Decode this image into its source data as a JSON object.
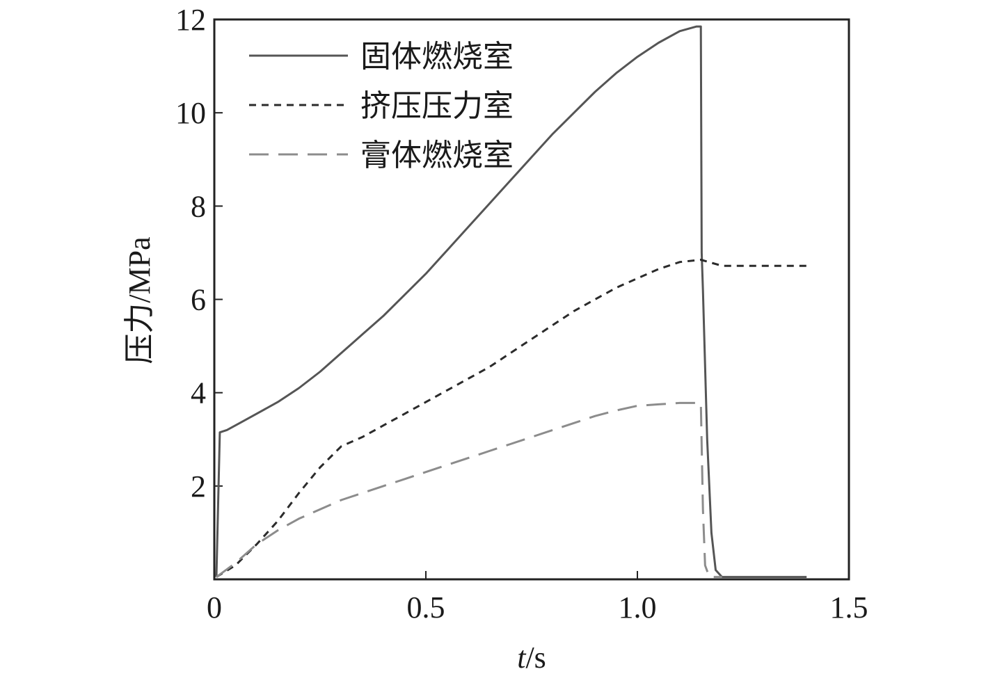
{
  "chart_data": {
    "type": "line",
    "title": "",
    "xlabel": "t/s",
    "xlabel_italic_part": "t",
    "xlabel_rest": "/s",
    "ylabel": "压力/MPa",
    "xlim": [
      0,
      1.5
    ],
    "ylim": [
      0,
      12
    ],
    "xticks": [
      0,
      0.5,
      1.0,
      1.5
    ],
    "xtick_labels": [
      "0",
      "0.5",
      "1.0",
      "1.5"
    ],
    "yticks": [
      2,
      4,
      6,
      8,
      10,
      12
    ],
    "ytick_labels": [
      "2",
      "4",
      "6",
      "8",
      "10",
      "12"
    ],
    "grid": false,
    "legend_position": "top-left",
    "series": [
      {
        "name": "固体燃烧室",
        "style": "solid",
        "color": "#555555",
        "points": [
          [
            0.005,
            0.05
          ],
          [
            0.013,
            3.15
          ],
          [
            0.03,
            3.2
          ],
          [
            0.06,
            3.35
          ],
          [
            0.1,
            3.55
          ],
          [
            0.15,
            3.8
          ],
          [
            0.2,
            4.1
          ],
          [
            0.25,
            4.45
          ],
          [
            0.3,
            4.85
          ],
          [
            0.35,
            5.25
          ],
          [
            0.4,
            5.65
          ],
          [
            0.45,
            6.1
          ],
          [
            0.5,
            6.55
          ],
          [
            0.55,
            7.05
          ],
          [
            0.6,
            7.55
          ],
          [
            0.65,
            8.05
          ],
          [
            0.7,
            8.55
          ],
          [
            0.75,
            9.05
          ],
          [
            0.8,
            9.55
          ],
          [
            0.85,
            10.0
          ],
          [
            0.9,
            10.45
          ],
          [
            0.95,
            10.85
          ],
          [
            1.0,
            11.2
          ],
          [
            1.05,
            11.5
          ],
          [
            1.1,
            11.75
          ],
          [
            1.14,
            11.85
          ],
          [
            1.15,
            11.85
          ],
          [
            1.152,
            7.0
          ],
          [
            1.155,
            6.2
          ],
          [
            1.165,
            3.0
          ],
          [
            1.175,
            1.0
          ],
          [
            1.185,
            0.2
          ],
          [
            1.2,
            0.05
          ],
          [
            1.3,
            0.05
          ],
          [
            1.4,
            0.05
          ]
        ]
      },
      {
        "name": "挤压压力室",
        "style": "dashed",
        "color": "#2b2b2b",
        "points": [
          [
            0.005,
            0.05
          ],
          [
            0.05,
            0.3
          ],
          [
            0.1,
            0.75
          ],
          [
            0.15,
            1.25
          ],
          [
            0.2,
            1.85
          ],
          [
            0.25,
            2.4
          ],
          [
            0.3,
            2.85
          ],
          [
            0.35,
            3.05
          ],
          [
            0.4,
            3.3
          ],
          [
            0.45,
            3.55
          ],
          [
            0.5,
            3.8
          ],
          [
            0.55,
            4.05
          ],
          [
            0.6,
            4.3
          ],
          [
            0.65,
            4.55
          ],
          [
            0.7,
            4.85
          ],
          [
            0.75,
            5.15
          ],
          [
            0.8,
            5.45
          ],
          [
            0.85,
            5.75
          ],
          [
            0.9,
            6.0
          ],
          [
            0.95,
            6.25
          ],
          [
            1.0,
            6.45
          ],
          [
            1.05,
            6.65
          ],
          [
            1.1,
            6.8
          ],
          [
            1.15,
            6.85
          ],
          [
            1.2,
            6.72
          ],
          [
            1.3,
            6.72
          ],
          [
            1.4,
            6.72
          ]
        ]
      },
      {
        "name": "膏体燃烧室",
        "style": "long-dash",
        "color": "#8c8c8c",
        "points": [
          [
            0.005,
            0.05
          ],
          [
            0.02,
            0.15
          ],
          [
            0.05,
            0.35
          ],
          [
            0.1,
            0.75
          ],
          [
            0.15,
            1.05
          ],
          [
            0.2,
            1.3
          ],
          [
            0.25,
            1.5
          ],
          [
            0.3,
            1.7
          ],
          [
            0.35,
            1.85
          ],
          [
            0.4,
            2.0
          ],
          [
            0.45,
            2.15
          ],
          [
            0.5,
            2.3
          ],
          [
            0.55,
            2.45
          ],
          [
            0.6,
            2.6
          ],
          [
            0.65,
            2.75
          ],
          [
            0.7,
            2.9
          ],
          [
            0.75,
            3.05
          ],
          [
            0.8,
            3.2
          ],
          [
            0.85,
            3.35
          ],
          [
            0.9,
            3.5
          ],
          [
            0.95,
            3.62
          ],
          [
            1.0,
            3.72
          ],
          [
            1.05,
            3.75
          ],
          [
            1.1,
            3.78
          ],
          [
            1.14,
            3.78
          ],
          [
            1.15,
            3.78
          ],
          [
            1.155,
            1.5
          ],
          [
            1.16,
            0.3
          ],
          [
            1.17,
            0.05
          ],
          [
            1.2,
            0.05
          ]
        ]
      }
    ]
  }
}
